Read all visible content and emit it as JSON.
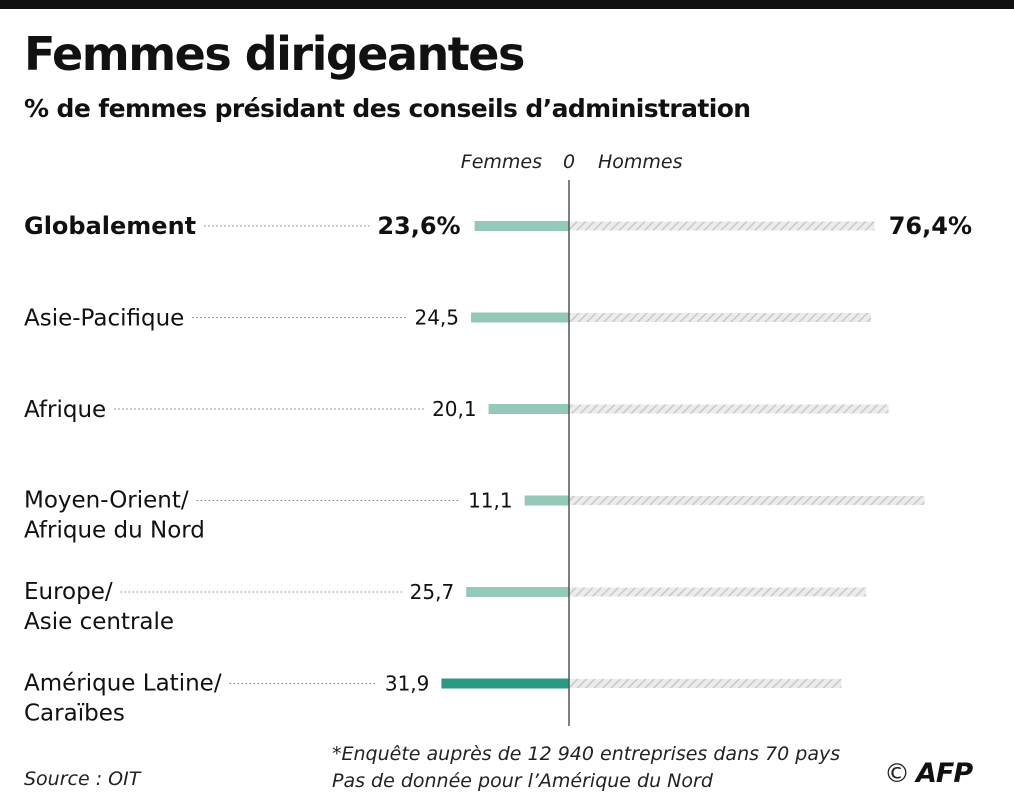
{
  "header": {
    "title": "Femmes dirigeantes",
    "subtitle": "% de femmes présidant des conseils d’administration"
  },
  "chart_data": {
    "type": "bar",
    "orientation": "horizontal-diverging",
    "axis_labels": {
      "left": "Femmes",
      "center": "0",
      "right": "Hommes"
    },
    "categories": [
      {
        "lines": [
          "Globalement"
        ],
        "women": 23.6,
        "men": 76.4,
        "women_label": "23,6%",
        "men_label": "76,4%",
        "highlight": true
      },
      {
        "lines": [
          "Asie-Pacifique"
        ],
        "women": 24.5,
        "men": 75.5,
        "women_label": "24,5",
        "highlight": false
      },
      {
        "lines": [
          "Afrique"
        ],
        "women": 20.1,
        "men": 79.9,
        "women_label": "20,1",
        "highlight": false
      },
      {
        "lines": [
          "Moyen-Orient/",
          "Afrique du Nord"
        ],
        "women": 11.1,
        "men": 88.9,
        "women_label": "11,1",
        "highlight": false
      },
      {
        "lines": [
          "Europe/",
          "Asie centrale"
        ],
        "women": 25.7,
        "men": 74.3,
        "women_label": "25,7",
        "highlight": false
      },
      {
        "lines": [
          "Amérique Latine/",
          "Caraïbes"
        ],
        "women": 31.9,
        "men": 68.1,
        "women_label": "31,9",
        "highlight": false
      }
    ],
    "colors": {
      "women": "#93c9b6",
      "women_max": "#2a9a82",
      "men_hatch": "#d3d3d3",
      "axis": "#555555"
    }
  },
  "footer": {
    "note_line1": "*Enquête auprès de 12 940 entreprises dans 70 pays",
    "note_line2": "Pas de donnée pour l’Amérique du Nord",
    "source": "Source : OIT",
    "copyright_symbol": "©",
    "brand": "AFP"
  }
}
